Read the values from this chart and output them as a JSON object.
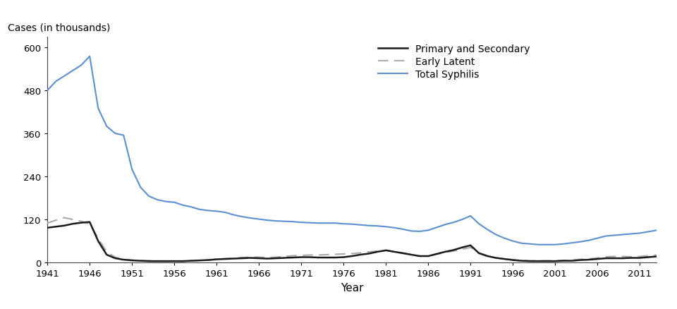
{
  "years": [
    1941,
    1942,
    1943,
    1944,
    1945,
    1946,
    1947,
    1948,
    1949,
    1950,
    1951,
    1952,
    1953,
    1954,
    1955,
    1956,
    1957,
    1958,
    1959,
    1960,
    1961,
    1962,
    1963,
    1964,
    1965,
    1966,
    1967,
    1968,
    1969,
    1970,
    1971,
    1972,
    1973,
    1974,
    1975,
    1976,
    1977,
    1978,
    1979,
    1980,
    1981,
    1982,
    1983,
    1984,
    1985,
    1986,
    1987,
    1988,
    1989,
    1990,
    1991,
    1992,
    1993,
    1994,
    1995,
    1996,
    1997,
    1998,
    1999,
    2000,
    2001,
    2002,
    2003,
    2004,
    2005,
    2006,
    2007,
    2008,
    2009,
    2010,
    2011,
    2012,
    2013
  ],
  "primary_secondary": [
    97,
    100,
    103,
    108,
    111,
    113,
    60,
    22,
    12,
    8,
    6,
    5,
    4,
    4,
    4,
    4,
    4,
    5,
    6,
    7,
    9,
    10,
    11,
    12,
    13,
    12,
    11,
    12,
    13,
    14,
    15,
    15,
    14,
    14,
    14,
    15,
    18,
    22,
    25,
    30,
    34,
    30,
    26,
    22,
    18,
    18,
    24,
    30,
    35,
    42,
    48,
    26,
    18,
    13,
    10,
    7,
    5,
    4,
    4,
    4,
    4,
    5,
    5,
    7,
    8,
    10,
    12,
    12,
    12,
    13,
    13,
    15,
    17
  ],
  "early_latent": [
    110,
    118,
    125,
    120,
    115,
    108,
    68,
    30,
    15,
    9,
    7,
    5,
    5,
    4,
    4,
    4,
    4,
    5,
    6,
    7,
    9,
    11,
    12,
    14,
    15,
    15,
    14,
    15,
    17,
    19,
    20,
    21,
    21,
    22,
    23,
    24,
    25,
    27,
    30,
    32,
    34,
    31,
    27,
    22,
    18,
    18,
    23,
    28,
    32,
    37,
    42,
    27,
    19,
    13,
    10,
    8,
    6,
    5,
    5,
    5,
    5,
    6,
    7,
    9,
    10,
    13,
    16,
    17,
    17,
    16,
    17,
    19,
    21
  ],
  "total_syphilis": [
    480,
    505,
    520,
    535,
    550,
    575,
    430,
    380,
    360,
    355,
    260,
    210,
    185,
    175,
    170,
    168,
    160,
    155,
    148,
    145,
    143,
    140,
    133,
    128,
    124,
    121,
    118,
    116,
    115,
    114,
    112,
    111,
    110,
    110,
    110,
    108,
    107,
    105,
    103,
    102,
    100,
    97,
    93,
    88,
    87,
    90,
    98,
    106,
    112,
    120,
    130,
    108,
    92,
    78,
    68,
    60,
    54,
    52,
    50,
    50,
    50,
    52,
    55,
    58,
    62,
    68,
    74,
    76,
    78,
    80,
    82,
    86,
    90
  ],
  "ylabel": "Cases (in thousands)",
  "xlabel": "Year",
  "ylim": [
    0,
    630
  ],
  "yticks": [
    0,
    120,
    240,
    360,
    480,
    600
  ],
  "xticks": [
    1941,
    1946,
    1951,
    1956,
    1961,
    1966,
    1971,
    1976,
    1981,
    1986,
    1991,
    1996,
    2001,
    2006,
    2011
  ],
  "legend_labels": [
    "Primary and Secondary",
    "Early Latent",
    "Total Syphilis"
  ],
  "colors": {
    "primary_secondary": "#1a1a1a",
    "early_latent": "#aaaaaa",
    "total_syphilis": "#5b8fd4"
  },
  "background_color": "#ffffff"
}
